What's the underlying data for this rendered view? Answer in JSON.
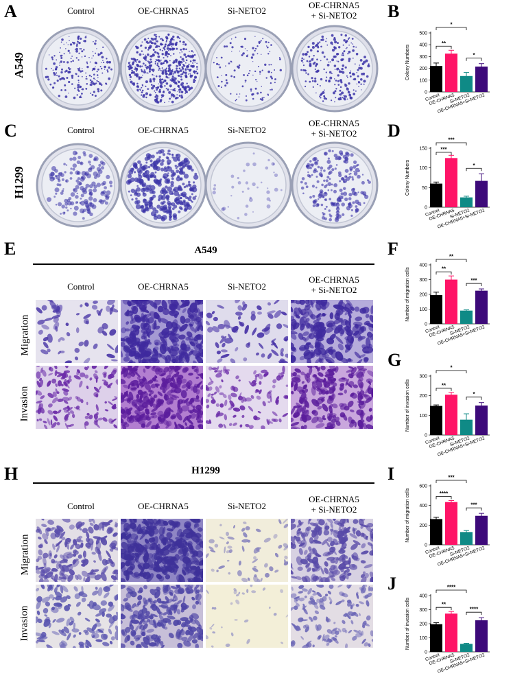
{
  "panel_letters": {
    "A": "A",
    "B": "B",
    "C": "C",
    "D": "D",
    "E": "E",
    "F": "F",
    "G": "G",
    "H": "H",
    "I": "I",
    "J": "J"
  },
  "groups": [
    "Control",
    "OE-CHRNA5",
    "Si-NETO2",
    "OE-CHRNA5\n+ Si-NETO2"
  ],
  "cell_lines": {
    "a549": "A549",
    "h1299": "H1299"
  },
  "rows": {
    "migration": "Migration",
    "invasion": "Invasion"
  },
  "colors": {
    "control": "#000000",
    "oe": "#ff1467",
    "si": "#0f8a86",
    "combo": "#3d0a7a",
    "stain_dish": "#3c34a8",
    "stain_mig": "#5a3fb8",
    "stain_inv": "#6a2aa8"
  },
  "chart_data": [
    {
      "panel": "B",
      "type": "bar",
      "ylabel": "Colony Numbers",
      "ylim": [
        0,
        500
      ],
      "yticks": [
        0,
        100,
        200,
        300,
        400,
        500
      ],
      "categories": [
        "Control",
        "OE-CHRNA5",
        "Si-NETO2",
        "OE-CHRNA5+Si-NETO2"
      ],
      "values": [
        220,
        325,
        135,
        215
      ],
      "errors": [
        25,
        28,
        30,
        25
      ],
      "significance": [
        {
          "pair": [
            0,
            1
          ],
          "label": "**"
        },
        {
          "pair": [
            0,
            2
          ],
          "label": "*"
        },
        {
          "pair": [
            2,
            3
          ],
          "label": "*"
        }
      ]
    },
    {
      "panel": "D",
      "type": "bar",
      "ylabel": "Colony Numbers",
      "ylim": [
        0,
        150
      ],
      "yticks": [
        0,
        50,
        100,
        150
      ],
      "categories": [
        "Control",
        "OE-CHRNA5",
        "Si-NETO2",
        "OE-CHRNA5+Si-NETO2"
      ],
      "values": [
        60,
        125,
        25,
        67
      ],
      "errors": [
        4,
        7,
        3,
        18
      ],
      "significance": [
        {
          "pair": [
            0,
            1
          ],
          "label": "***"
        },
        {
          "pair": [
            0,
            2
          ],
          "label": "***"
        },
        {
          "pair": [
            2,
            3
          ],
          "label": "*"
        }
      ]
    },
    {
      "panel": "F",
      "type": "bar",
      "ylabel": "Number of migration cells",
      "ylim": [
        0,
        400
      ],
      "yticks": [
        0,
        100,
        200,
        300,
        400
      ],
      "categories": [
        "Control",
        "OE-CHRNA5",
        "Si-NETO2",
        "OE-CHRNA5+Si-NETO2"
      ],
      "values": [
        195,
        300,
        90,
        225
      ],
      "errors": [
        20,
        25,
        5,
        12
      ],
      "significance": [
        {
          "pair": [
            0,
            1
          ],
          "label": "**"
        },
        {
          "pair": [
            0,
            2
          ],
          "label": "**"
        },
        {
          "pair": [
            2,
            3
          ],
          "label": "***"
        }
      ]
    },
    {
      "panel": "G",
      "type": "bar",
      "ylabel": "Number of invasion cells",
      "ylim": [
        0,
        300
      ],
      "yticks": [
        0,
        100,
        200,
        300
      ],
      "categories": [
        "Control",
        "OE-CHRNA5",
        "Si-NETO2",
        "OE-CHRNA5+Si-NETO2"
      ],
      "values": [
        148,
        205,
        78,
        150
      ],
      "errors": [
        5,
        12,
        30,
        15
      ],
      "significance": [
        {
          "pair": [
            0,
            1
          ],
          "label": "**"
        },
        {
          "pair": [
            0,
            2
          ],
          "label": "*"
        },
        {
          "pair": [
            2,
            3
          ],
          "label": "*"
        }
      ]
    },
    {
      "panel": "I",
      "type": "bar",
      "ylabel": "Number of migration cells",
      "ylim": [
        0,
        600
      ],
      "yticks": [
        0,
        200,
        400,
        600
      ],
      "categories": [
        "Control",
        "OE-CHRNA5",
        "Si-NETO2",
        "OE-CHRNA5+Si-NETO2"
      ],
      "values": [
        262,
        435,
        130,
        295
      ],
      "errors": [
        18,
        15,
        15,
        25
      ],
      "significance": [
        {
          "pair": [
            0,
            1
          ],
          "label": "****"
        },
        {
          "pair": [
            0,
            2
          ],
          "label": "***"
        },
        {
          "pair": [
            2,
            3
          ],
          "label": "***"
        }
      ]
    },
    {
      "panel": "J",
      "type": "bar",
      "ylabel": "Number of invasion cells",
      "ylim": [
        0,
        400
      ],
      "yticks": [
        0,
        100,
        200,
        300,
        400
      ],
      "categories": [
        "Control",
        "OE-CHRNA5",
        "Si-NETO2",
        "OE-CHRNA5+Si-NETO2"
      ],
      "values": [
        197,
        272,
        57,
        225
      ],
      "errors": [
        10,
        15,
        4,
        18
      ],
      "significance": [
        {
          "pair": [
            0,
            1
          ],
          "label": "**"
        },
        {
          "pair": [
            0,
            2
          ],
          "label": "****"
        },
        {
          "pair": [
            2,
            3
          ],
          "label": "****"
        }
      ]
    }
  ]
}
